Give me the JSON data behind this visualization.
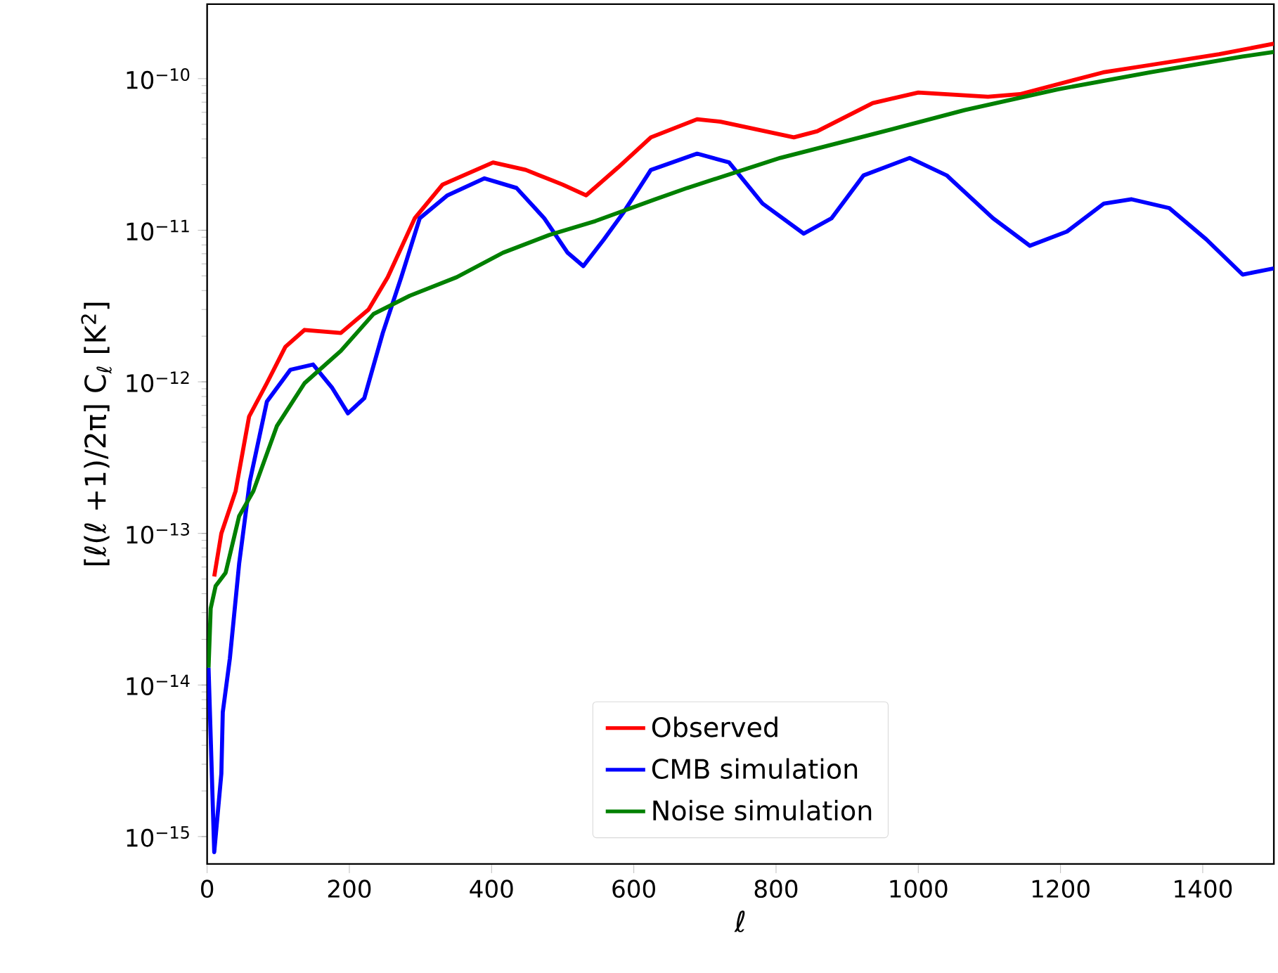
{
  "chart_data": {
    "type": "line",
    "xlabel": "ℓ",
    "ylabel": "[ℓ(ℓ +1)/2π] C$_{ℓ}$ [K$^{2}$]",
    "log": "y",
    "legend": "bottom",
    "grid": false,
    "marker": "none",
    "line_style": "solid",
    "xlim": [
      0,
      1500
    ],
    "xticks": [
      0,
      200,
      400,
      600,
      800,
      1000,
      1200,
      1400
    ],
    "ylim": [
      6.6e-16,
      3.1e-10
    ],
    "yticks": [
      {
        "value": 1e-15,
        "label": "10$^{−15}$"
      },
      {
        "value": 1e-14,
        "label": "10$^{−14}$"
      },
      {
        "value": 1e-13,
        "label": "10$^{−13}$"
      },
      {
        "value": 1e-12,
        "label": "10$^{−12}$"
      },
      {
        "value": 1e-11,
        "label": "10$^{−11}$"
      },
      {
        "value": 1e-10,
        "label": "10$^{−10}$"
      }
    ],
    "series": [
      {
        "name": "Observed",
        "color": "#ff0000",
        "x": [
          10,
          20,
          40,
          59,
          84,
          110,
          137,
          188,
          227,
          254,
          292,
          331,
          402,
          448,
          500,
          533,
          578,
          624,
          689,
          722,
          825,
          858,
          936,
          1000,
          1098,
          1143,
          1260,
          1326,
          1423,
          1500
        ],
        "values": [
          5.2e-14,
          1e-13,
          1.9e-13,
          5.9e-13,
          9.8e-13,
          1.7e-12,
          2.2e-12,
          2.1e-12,
          3e-12,
          4.9e-12,
          1.2e-11,
          2e-11,
          2.8e-11,
          2.5e-11,
          2e-11,
          1.7e-11,
          2.6e-11,
          4.1e-11,
          5.4e-11,
          5.2e-11,
          4.1e-11,
          4.5e-11,
          6.9e-11,
          8.1e-11,
          7.6e-11,
          7.9e-11,
          1.1e-10,
          1.23e-10,
          1.45e-10,
          1.7e-10
        ]
      },
      {
        "name": "CMB simulation",
        "color": "#0000ff",
        "x": [
          2,
          6,
          10,
          20,
          22,
          32,
          45,
          60,
          84,
          117,
          149,
          176,
          198,
          221,
          247,
          273,
          299,
          338,
          390,
          435,
          474,
          507,
          529,
          558,
          585,
          624,
          689,
          734,
          781,
          839,
          878,
          923,
          988,
          1040,
          1105,
          1157,
          1209,
          1261,
          1300,
          1353,
          1405,
          1456,
          1500
        ],
        "values": [
          1.3e-14,
          3.2e-15,
          7.9e-16,
          2.6e-15,
          6.6e-15,
          1.5e-14,
          6.3e-14,
          2.2e-13,
          7.4e-13,
          1.2e-12,
          1.3e-12,
          9.1e-13,
          6.2e-13,
          7.8e-13,
          2.1e-12,
          4.9e-12,
          1.2e-11,
          1.7e-11,
          2.2e-11,
          1.9e-11,
          1.2e-11,
          7.1e-12,
          5.8e-12,
          8.7e-12,
          1.3e-11,
          2.5e-11,
          3.2e-11,
          2.8e-11,
          1.5e-11,
          9.5e-12,
          1.2e-11,
          2.3e-11,
          3e-11,
          2.3e-11,
          1.2e-11,
          7.9e-12,
          9.8e-12,
          1.5e-11,
          1.6e-11,
          1.4e-11,
          8.7e-12,
          5.1e-12,
          5.6e-12
        ]
      },
      {
        "name": "Noise simulation",
        "color": "#008000",
        "x": [
          2,
          5,
          12,
          26,
          45,
          65,
          98,
          137,
          188,
          234,
          285,
          351,
          416,
          481,
          546,
          630,
          675,
          806,
          936,
          1065,
          1196,
          1326,
          1456,
          1500
        ],
        "values": [
          1.3e-14,
          3.2e-14,
          4.5e-14,
          5.5e-14,
          1.3e-13,
          1.9e-13,
          5.1e-13,
          9.8e-13,
          1.6e-12,
          2.8e-12,
          3.7e-12,
          4.9e-12,
          7.1e-12,
          9.3e-12,
          1.15e-11,
          1.6e-11,
          1.9e-11,
          3e-11,
          4.3e-11,
          6.2e-11,
          8.5e-11,
          1.1e-10,
          1.4e-10,
          1.5e-10
        ]
      }
    ]
  }
}
